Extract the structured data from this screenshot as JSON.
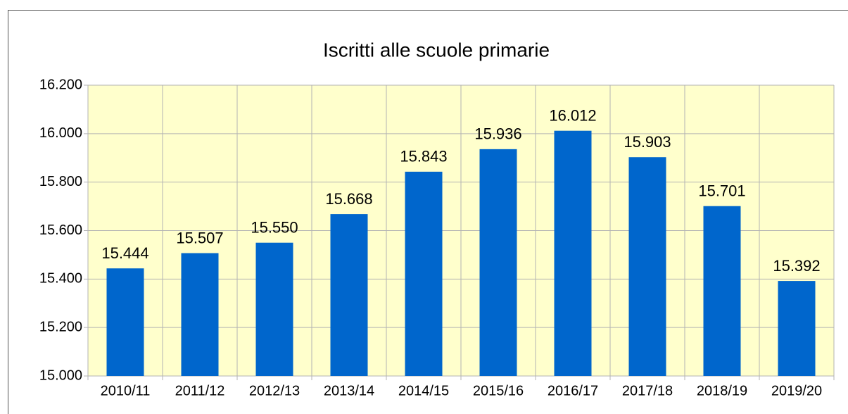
{
  "chart_data": {
    "type": "bar",
    "title": "Iscritti alle scuole primarie",
    "categories": [
      "2010/11",
      "2011/12",
      "2012/13",
      "2013/14",
      "2014/15",
      "2015/16",
      "2016/17",
      "2017/18",
      "2018/19",
      "2019/20"
    ],
    "values": [
      15444,
      15507,
      15550,
      15668,
      15843,
      15936,
      16012,
      15903,
      15701,
      15392
    ],
    "value_labels": [
      "15.444",
      "15.507",
      "15.550",
      "15.668",
      "15.843",
      "15.936",
      "16.012",
      "15.903",
      "15.701",
      "15.392"
    ],
    "color": "#0066cc",
    "ylim": [
      15000,
      16200
    ],
    "yticks": [
      {
        "value": 15000,
        "label": "15.000"
      },
      {
        "value": 15200,
        "label": "15.200"
      },
      {
        "value": 15400,
        "label": "15.400"
      },
      {
        "value": 15600,
        "label": "15.600"
      },
      {
        "value": 15800,
        "label": "15.800"
      },
      {
        "value": 16000,
        "label": "16.000"
      },
      {
        "value": 16200,
        "label": "16.200"
      }
    ],
    "grid": true
  }
}
